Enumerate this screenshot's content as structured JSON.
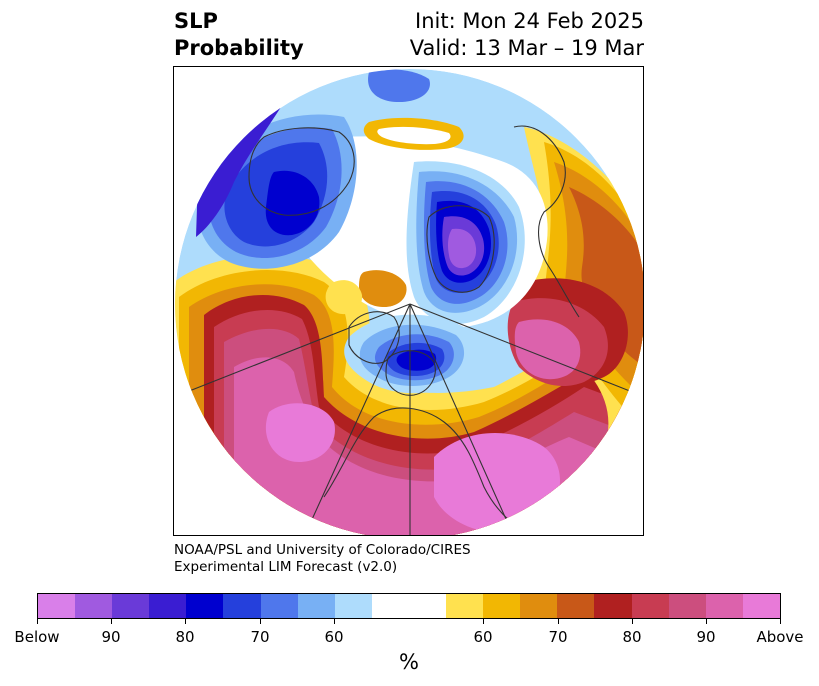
{
  "header": {
    "title_line1": "SLP",
    "title_line2": "Probability",
    "init": "Init: Mon 24 Feb 2025",
    "valid": "Valid: 13 Mar – 19 Mar"
  },
  "credit": {
    "line1": "NOAA/PSL and University of Colorado/CIRES",
    "line2": "Experimental LIM Forecast (v2.0)"
  },
  "colorbar": {
    "colors": [
      "#d97fe9",
      "#a05ae0",
      "#6a3ad8",
      "#3a1dd2",
      "#0000cf",
      "#2540dc",
      "#4f77ec",
      "#78b0f4",
      "#aedcfc",
      "#ffffff",
      "#ffffff",
      "#ffe14f",
      "#f2b703",
      "#e08d0e",
      "#c85818",
      "#b02020",
      "#c83c52",
      "#cc4e7e",
      "#dc62ac",
      "#e87ad8"
    ],
    "tick_labels": [
      "Below",
      "90",
      "80",
      "70",
      "60",
      "60",
      "70",
      "80",
      "90",
      "Above"
    ],
    "unit": "%"
  },
  "map": {
    "colors": {
      "pink_high": "#e87ad8",
      "magenta": "#dc62ac",
      "rose": "#cc4e7e",
      "crimson": "#c83c52",
      "red": "#b02020",
      "orange_red": "#c85818",
      "orange": "#e08d0e",
      "gold": "#f2b703",
      "yellow": "#ffe14f",
      "light_blue": "#aedcfc",
      "sky": "#78b0f4",
      "blue": "#4f77ec",
      "royal": "#2540dc",
      "deep_blue": "#0000cf",
      "indigo": "#3a1dd2",
      "violet": "#6a3ad8",
      "purple": "#a05ae0",
      "lilac": "#d97fe9",
      "coast": "#333333"
    }
  }
}
